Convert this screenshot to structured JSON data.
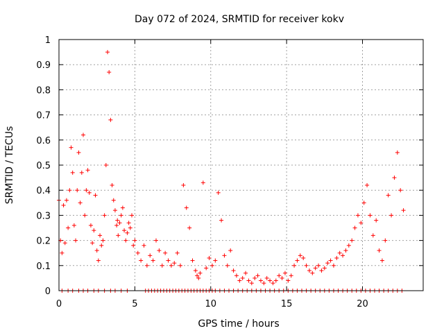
{
  "chart_data": {
    "type": "scatter",
    "title": "Day 072 of 2024, SRMTID for receiver kokv",
    "xlabel": "GPS time / hours",
    "ylabel": "SRMTID / TECUs",
    "xlim": [
      0,
      24
    ],
    "ylim": [
      0,
      1
    ],
    "xticks": [
      0,
      5,
      10,
      15,
      20
    ],
    "xtick_labels": [
      "0",
      "5",
      "10",
      "15",
      "20"
    ],
    "yticks": [
      0,
      0.1,
      0.2,
      0.3,
      0.4,
      0.5,
      0.6,
      0.7,
      0.8,
      0.9,
      1
    ],
    "ytick_labels": [
      "0",
      "0.1",
      "0.2",
      "0.3",
      "0.4",
      "0.5",
      "0.6",
      "0.7",
      "0.8",
      "0.9",
      "1"
    ],
    "grid": true,
    "marker": "plus",
    "color": "#ff0000",
    "series": [
      {
        "name": "SRMTID",
        "x": [
          0.0,
          0.1,
          0.2,
          0.3,
          0.4,
          0.5,
          0.6,
          0.7,
          0.8,
          0.9,
          1.0,
          1.1,
          1.2,
          1.3,
          1.4,
          1.5,
          1.6,
          1.7,
          1.8,
          1.9,
          2.0,
          2.1,
          2.2,
          2.3,
          2.4,
          2.5,
          2.6,
          2.7,
          2.8,
          2.9,
          3.0,
          3.1,
          3.2,
          3.3,
          3.4,
          3.5,
          3.6,
          3.7,
          3.8,
          3.85,
          3.9,
          4.0,
          4.1,
          4.2,
          4.3,
          4.4,
          4.5,
          4.6,
          4.7,
          4.8,
          4.9,
          5.0,
          5.2,
          5.4,
          5.6,
          5.8,
          6.0,
          6.2,
          6.4,
          6.6,
          6.8,
          7.0,
          7.2,
          7.4,
          7.6,
          7.8,
          8.0,
          8.2,
          8.4,
          8.6,
          8.8,
          9.0,
          9.1,
          9.2,
          9.3,
          9.5,
          9.7,
          9.9,
          10.1,
          10.3,
          10.5,
          10.7,
          10.9,
          11.1,
          11.3,
          11.5,
          11.7,
          11.9,
          12.1,
          12.3,
          12.5,
          12.7,
          12.9,
          13.1,
          13.3,
          13.5,
          13.7,
          13.9,
          14.1,
          14.3,
          14.5,
          14.7,
          14.9,
          15.1,
          15.3,
          15.5,
          15.7,
          15.9,
          16.1,
          16.3,
          16.5,
          16.7,
          16.9,
          17.1,
          17.3,
          17.5,
          17.7,
          17.9,
          18.1,
          18.3,
          18.5,
          18.7,
          18.9,
          19.1,
          19.3,
          19.5,
          19.7,
          19.9,
          20.1,
          20.3,
          20.5,
          20.7,
          20.9,
          21.1,
          21.3,
          21.5,
          21.7,
          21.9,
          22.1,
          22.3,
          22.5,
          22.7
        ],
        "y": [
          0.36,
          0.2,
          0.15,
          0.34,
          0.19,
          0.36,
          0.25,
          0.4,
          0.57,
          0.47,
          0.26,
          0.2,
          0.4,
          0.55,
          0.35,
          0.47,
          0.62,
          0.3,
          0.4,
          0.48,
          0.39,
          0.26,
          0.19,
          0.24,
          0.38,
          0.16,
          0.12,
          0.22,
          0.18,
          0.2,
          0.3,
          0.5,
          0.95,
          0.87,
          0.68,
          0.42,
          0.36,
          0.32,
          0.26,
          0.28,
          0.22,
          0.27,
          0.3,
          0.33,
          0.24,
          0.2,
          0.23,
          0.27,
          0.25,
          0.3,
          0.18,
          0.2,
          0.15,
          0.12,
          0.18,
          0.1,
          0.14,
          0.12,
          0.2,
          0.16,
          0.1,
          0.15,
          0.12,
          0.1,
          0.11,
          0.15,
          0.1,
          0.42,
          0.33,
          0.25,
          0.12,
          0.08,
          0.06,
          0.05,
          0.07,
          0.43,
          0.09,
          0.13,
          0.1,
          0.12,
          0.39,
          0.28,
          0.14,
          0.1,
          0.16,
          0.08,
          0.06,
          0.04,
          0.05,
          0.07,
          0.04,
          0.03,
          0.05,
          0.06,
          0.04,
          0.03,
          0.05,
          0.04,
          0.03,
          0.04,
          0.06,
          0.05,
          0.07,
          0.04,
          0.06,
          0.1,
          0.12,
          0.14,
          0.13,
          0.1,
          0.08,
          0.07,
          0.09,
          0.1,
          0.08,
          0.09,
          0.11,
          0.12,
          0.1,
          0.13,
          0.15,
          0.14,
          0.16,
          0.18,
          0.2,
          0.25,
          0.3,
          0.27,
          0.35,
          0.42,
          0.3,
          0.22,
          0.28,
          0.16,
          0.12,
          0.2,
          0.38,
          0.3,
          0.45,
          0.55,
          0.4,
          0.32
        ]
      }
    ],
    "zero_points_x": [
      0.2,
      0.6,
      0.9,
      1.3,
      1.6,
      1.9,
      2.3,
      2.6,
      3.0,
      3.4,
      3.7,
      4.1,
      4.5,
      5.7,
      5.9,
      6.1,
      6.3,
      6.5,
      6.7,
      6.9,
      7.1,
      7.3,
      7.5,
      7.7,
      7.9,
      8.1,
      8.3,
      8.5,
      8.7,
      8.9,
      9.1,
      9.3,
      9.5,
      9.7,
      9.9,
      10.1,
      10.3,
      10.6,
      10.9,
      11.2,
      11.5,
      11.8,
      12.1,
      12.4,
      12.7,
      13.0,
      13.3,
      13.6,
      13.9,
      14.2,
      14.5,
      14.8,
      15.1,
      15.4,
      15.7,
      16.0,
      16.3,
      16.6,
      16.9,
      17.2,
      17.5,
      17.8,
      18.1,
      18.4,
      18.7,
      19.0,
      19.3,
      19.6,
      19.9,
      20.2,
      20.5,
      20.8,
      21.1,
      21.4,
      21.7,
      22.0,
      22.3,
      22.6
    ]
  }
}
